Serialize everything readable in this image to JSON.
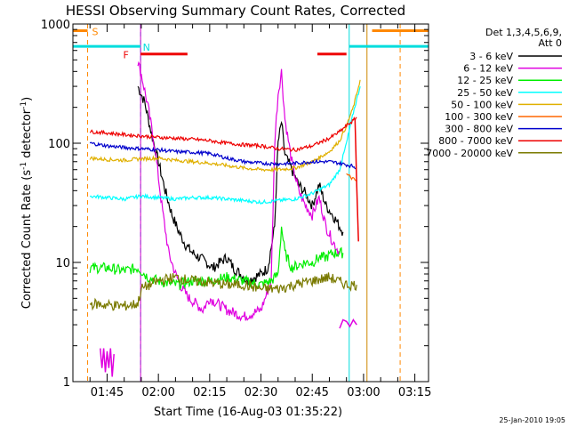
{
  "chart_data": {
    "type": "line",
    "title": "HESSI Observing Summary Count Rates, Corrected",
    "xlabel": "Start Time (16-Aug-03 01:35:22)",
    "ylabel": "Corrected Count Rate (s",
    "ylabel_sup1": "-1",
    "ylabel_mid": " detector",
    "ylabel_sup2": "-1",
    "ylabel_end": ")",
    "yscale": "log",
    "ylim": [
      1,
      1000
    ],
    "xlim_minutes": [
      0,
      104
    ],
    "x_ticks": [
      {
        "m": 10.0,
        "label": "01:45"
      },
      {
        "m": 25.0,
        "label": "02:00"
      },
      {
        "m": 40.0,
        "label": "02:15"
      },
      {
        "m": 55.0,
        "label": "02:30"
      },
      {
        "m": 70.0,
        "label": "02:45"
      },
      {
        "m": 85.0,
        "label": "03:00"
      },
      {
        "m": 100.0,
        "label": "03:15"
      }
    ],
    "y_ticks": [
      {
        "v": 1,
        "label": "1"
      },
      {
        "v": 10,
        "label": "10"
      },
      {
        "v": 100,
        "label": "100"
      },
      {
        "v": 1000,
        "label": "1000"
      }
    ],
    "legend_header": [
      "Det 1,3,4,5,6,9,",
      "Att 0"
    ],
    "series": [
      {
        "name": "3 - 6 keV",
        "color": "#000000",
        "points": [
          [
            19,
            300
          ],
          [
            21,
            220
          ],
          [
            23,
            120
          ],
          [
            25,
            70
          ],
          [
            27,
            40
          ],
          [
            29,
            25
          ],
          [
            31,
            18
          ],
          [
            33,
            14
          ],
          [
            35,
            12
          ],
          [
            37,
            11
          ],
          [
            39,
            10
          ],
          [
            41,
            9
          ],
          [
            43,
            10
          ],
          [
            45,
            11
          ],
          [
            47,
            9
          ],
          [
            49,
            8
          ],
          [
            51,
            7
          ],
          [
            53,
            7.5
          ],
          [
            55,
            8
          ],
          [
            57,
            9
          ],
          [
            59,
            20
          ],
          [
            60,
            100
          ],
          [
            61,
            150
          ],
          [
            62,
            80
          ],
          [
            64,
            60
          ],
          [
            66,
            45
          ],
          [
            68,
            38
          ],
          [
            70,
            30
          ],
          [
            72,
            45
          ],
          [
            74,
            30
          ],
          [
            76,
            25
          ],
          [
            78,
            20
          ],
          [
            79,
            18
          ]
        ]
      },
      {
        "name": "6 - 12 keV",
        "color": "#e000e0",
        "points": [
          [
            19,
            480
          ],
          [
            20,
            380
          ],
          [
            22,
            200
          ],
          [
            24,
            90
          ],
          [
            26,
            30
          ],
          [
            28,
            12
          ],
          [
            30,
            8
          ],
          [
            32,
            6
          ],
          [
            34,
            5
          ],
          [
            36,
            4.5
          ],
          [
            38,
            4
          ],
          [
            40,
            5
          ],
          [
            45,
            4
          ],
          [
            50,
            3.5
          ],
          [
            55,
            4
          ],
          [
            58,
            7
          ],
          [
            59,
            100
          ],
          [
            60,
            260
          ],
          [
            61,
            400
          ],
          [
            62,
            160
          ],
          [
            64,
            70
          ],
          [
            66,
            40
          ],
          [
            68,
            30
          ],
          [
            70,
            25
          ],
          [
            72,
            35
          ],
          [
            74,
            20
          ],
          [
            76,
            15
          ],
          [
            78,
            12
          ]
        ]
      },
      {
        "name": "12 - 25 keV",
        "color": "#00ee00",
        "points": [
          [
            5,
            9
          ],
          [
            10,
            9
          ],
          [
            15,
            8.5
          ],
          [
            19,
            9
          ],
          [
            22,
            7.5
          ],
          [
            25,
            7
          ],
          [
            30,
            6.5
          ],
          [
            35,
            7
          ],
          [
            40,
            7
          ],
          [
            45,
            7.5
          ],
          [
            50,
            7
          ],
          [
            55,
            6.5
          ],
          [
            58,
            7
          ],
          [
            60,
            8
          ],
          [
            61,
            20
          ],
          [
            62,
            12
          ],
          [
            64,
            9
          ],
          [
            66,
            9.5
          ],
          [
            68,
            10
          ],
          [
            70,
            10
          ],
          [
            72,
            11
          ],
          [
            74,
            11
          ],
          [
            76,
            12
          ],
          [
            79,
            12
          ]
        ]
      },
      {
        "name": "25 - 50 keV",
        "color": "#00ffff",
        "points": [
          [
            5,
            36
          ],
          [
            10,
            35
          ],
          [
            15,
            34
          ],
          [
            20,
            36
          ],
          [
            25,
            35
          ],
          [
            30,
            34
          ],
          [
            35,
            35
          ],
          [
            40,
            35
          ],
          [
            45,
            34
          ],
          [
            50,
            33
          ],
          [
            55,
            32
          ],
          [
            60,
            33
          ],
          [
            65,
            34
          ],
          [
            70,
            38
          ],
          [
            75,
            45
          ],
          [
            78,
            60
          ],
          [
            80,
            100
          ],
          [
            82,
            180
          ],
          [
            84,
            300
          ]
        ]
      },
      {
        "name": "50 - 100 keV",
        "color": "#e0b000",
        "points": [
          [
            5,
            75
          ],
          [
            10,
            73
          ],
          [
            15,
            72
          ],
          [
            20,
            74
          ],
          [
            25,
            75
          ],
          [
            30,
            72
          ],
          [
            35,
            70
          ],
          [
            40,
            68
          ],
          [
            45,
            65
          ],
          [
            50,
            62
          ],
          [
            55,
            60
          ],
          [
            60,
            60
          ],
          [
            65,
            62
          ],
          [
            70,
            70
          ],
          [
            75,
            85
          ],
          [
            78,
            105
          ],
          [
            80,
            140
          ],
          [
            82,
            200
          ],
          [
            84,
            340
          ]
        ]
      },
      {
        "name": "100 - 300 keV",
        "color": "#ff6600",
        "points": [
          [
            80,
            55
          ],
          [
            82,
            50
          ],
          [
            83,
            48
          ]
        ]
      },
      {
        "name": "300 - 800 keV",
        "color": "#0000cc",
        "points": [
          [
            5,
            100
          ],
          [
            10,
            95
          ],
          [
            15,
            92
          ],
          [
            20,
            90
          ],
          [
            25,
            88
          ],
          [
            30,
            85
          ],
          [
            35,
            84
          ],
          [
            40,
            82
          ],
          [
            45,
            75
          ],
          [
            50,
            70
          ],
          [
            55,
            68
          ],
          [
            60,
            67
          ],
          [
            65,
            68
          ],
          [
            70,
            70
          ],
          [
            75,
            70
          ],
          [
            78,
            68
          ],
          [
            80,
            66
          ],
          [
            82,
            64
          ],
          [
            83,
            62
          ]
        ]
      },
      {
        "name": "800 - 7000 keV",
        "color": "#ee0000",
        "points": [
          [
            5,
            125
          ],
          [
            10,
            122
          ],
          [
            15,
            118
          ],
          [
            20,
            115
          ],
          [
            25,
            112
          ],
          [
            30,
            110
          ],
          [
            35,
            108
          ],
          [
            40,
            105
          ],
          [
            45,
            100
          ],
          [
            50,
            97
          ],
          [
            55,
            95
          ],
          [
            60,
            90
          ],
          [
            65,
            88
          ],
          [
            70,
            95
          ],
          [
            75,
            110
          ],
          [
            78,
            125
          ],
          [
            80,
            140
          ],
          [
            82,
            155
          ],
          [
            83,
            165
          ]
        ]
      },
      {
        "name": "7000 - 20000 keV",
        "color": "#7a7a00",
        "points": [
          [
            5,
            4.5
          ],
          [
            10,
            4.4
          ],
          [
            15,
            4.3
          ],
          [
            19,
            4.5
          ],
          [
            20,
            6
          ],
          [
            25,
            7
          ],
          [
            30,
            7.5
          ],
          [
            35,
            7
          ],
          [
            40,
            6.8
          ],
          [
            45,
            6.5
          ],
          [
            50,
            6.5
          ],
          [
            55,
            6
          ],
          [
            60,
            6
          ],
          [
            65,
            6.5
          ],
          [
            70,
            7
          ],
          [
            75,
            7.5
          ],
          [
            80,
            6.5
          ],
          [
            83,
            6.5
          ]
        ]
      }
    ],
    "extra_segments": [
      {
        "color": "#e000e0",
        "points": [
          [
            8,
            1.9
          ],
          [
            8.5,
            1.3
          ],
          [
            9,
            1.9
          ],
          [
            9.5,
            1.2
          ],
          [
            10,
            1.8
          ],
          [
            10.5,
            1.3
          ],
          [
            11,
            1.9
          ],
          [
            11.5,
            1.1
          ],
          [
            12,
            1.7
          ]
        ]
      },
      {
        "color": "#e000e0",
        "points": [
          [
            78,
            2.8
          ],
          [
            79,
            3.3
          ],
          [
            80,
            3.2
          ],
          [
            81,
            2.9
          ],
          [
            82,
            3.3
          ],
          [
            83,
            3
          ]
        ]
      },
      {
        "color": "#ee0000",
        "points": [
          [
            82.5,
            160
          ],
          [
            83,
            45
          ],
          [
            83.5,
            15
          ]
        ]
      }
    ],
    "vertical_lines": [
      {
        "m": 4.3,
        "color": "#ff8800",
        "dash": true
      },
      {
        "m": 19.8,
        "color": "#00dddd",
        "dash": true
      },
      {
        "m": 19.8,
        "color": "#cc00cc",
        "dash": false
      },
      {
        "m": 80.8,
        "color": "#00dddd",
        "dash": false
      },
      {
        "m": 86.0,
        "color": "#cc8800",
        "dash": false
      },
      {
        "m": 95.7,
        "color": "#ff8800",
        "dash": true
      }
    ],
    "flags": [
      {
        "code": "S",
        "color": "#ff8800",
        "y_level": 880,
        "label_m": 6.5,
        "segments": [
          [
            0,
            4.3
          ],
          [
            87.5,
            104
          ]
        ]
      },
      {
        "code": "N",
        "color": "#00dddd",
        "y_level": 650,
        "label_m": 21.5,
        "segments": [
          [
            0,
            19.8
          ],
          [
            80.8,
            104
          ]
        ]
      },
      {
        "code": "F",
        "color": "#ee0000",
        "y_level": 560,
        "label_m": 15.5,
        "segments": [
          [
            19.8,
            33.5
          ],
          [
            71.5,
            80
          ]
        ]
      }
    ]
  },
  "footer": {
    "timestamp": "25-Jan-2010 19:05"
  }
}
